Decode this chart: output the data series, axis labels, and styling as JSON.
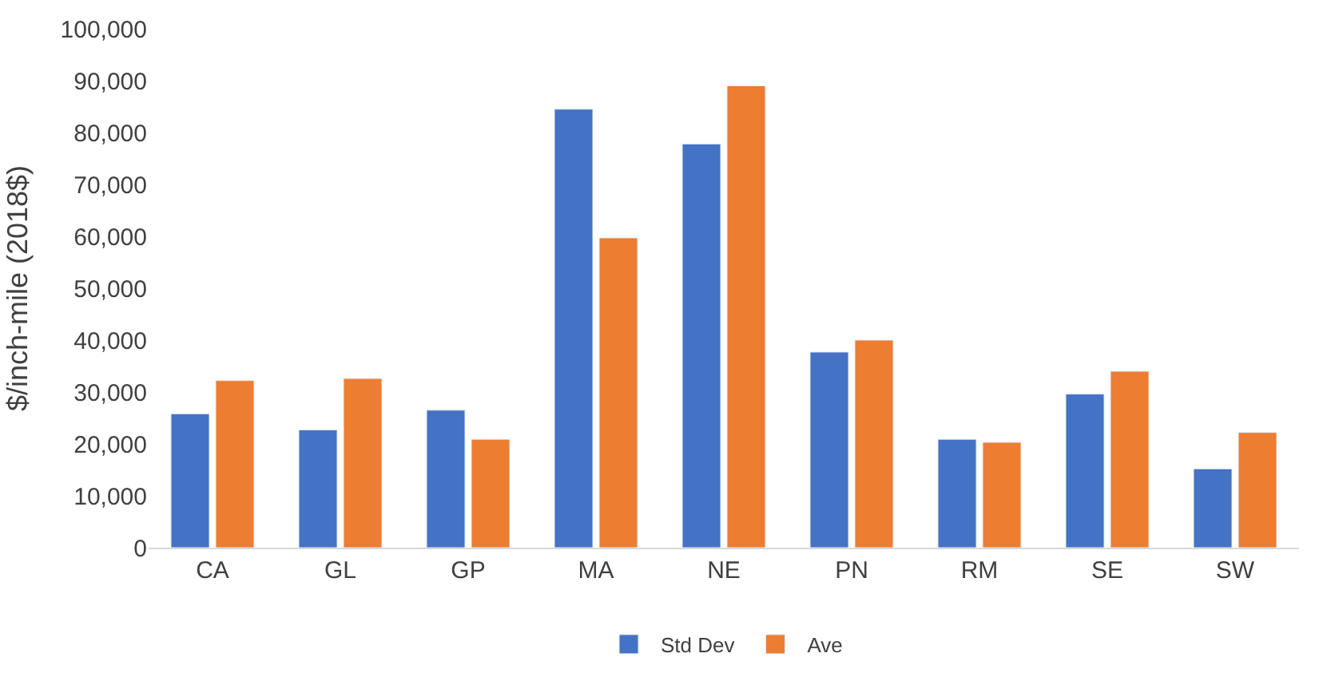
{
  "chart_data": {
    "type": "bar",
    "ylabel": "$/inch-mile (2018$)",
    "categories": [
      "CA",
      "GL",
      "GP",
      "MA",
      "NE",
      "PN",
      "RM",
      "SE",
      "SW"
    ],
    "series": [
      {
        "name": "Std Dev",
        "color": "#4472c4",
        "values": [
          25800,
          22700,
          26500,
          84500,
          77800,
          37700,
          20900,
          29600,
          15200
        ]
      },
      {
        "name": "Ave",
        "color": "#ed7d31",
        "values": [
          32200,
          32600,
          20900,
          59700,
          89000,
          40000,
          20300,
          34000,
          22200
        ]
      }
    ],
    "ylim": [
      0,
      100000
    ],
    "yticks": [
      {
        "value": 0,
        "label": "0"
      },
      {
        "value": 10000,
        "label": "10,000"
      },
      {
        "value": 20000,
        "label": "20,000"
      },
      {
        "value": 30000,
        "label": "30,000"
      },
      {
        "value": 40000,
        "label": "40,000"
      },
      {
        "value": 50000,
        "label": "50,000"
      },
      {
        "value": 60000,
        "label": "60,000"
      },
      {
        "value": 70000,
        "label": "70,000"
      },
      {
        "value": 80000,
        "label": "80,000"
      },
      {
        "value": 90000,
        "label": "90,000"
      },
      {
        "value": 100000,
        "label": "100,000"
      }
    ],
    "legend": "bottom"
  }
}
